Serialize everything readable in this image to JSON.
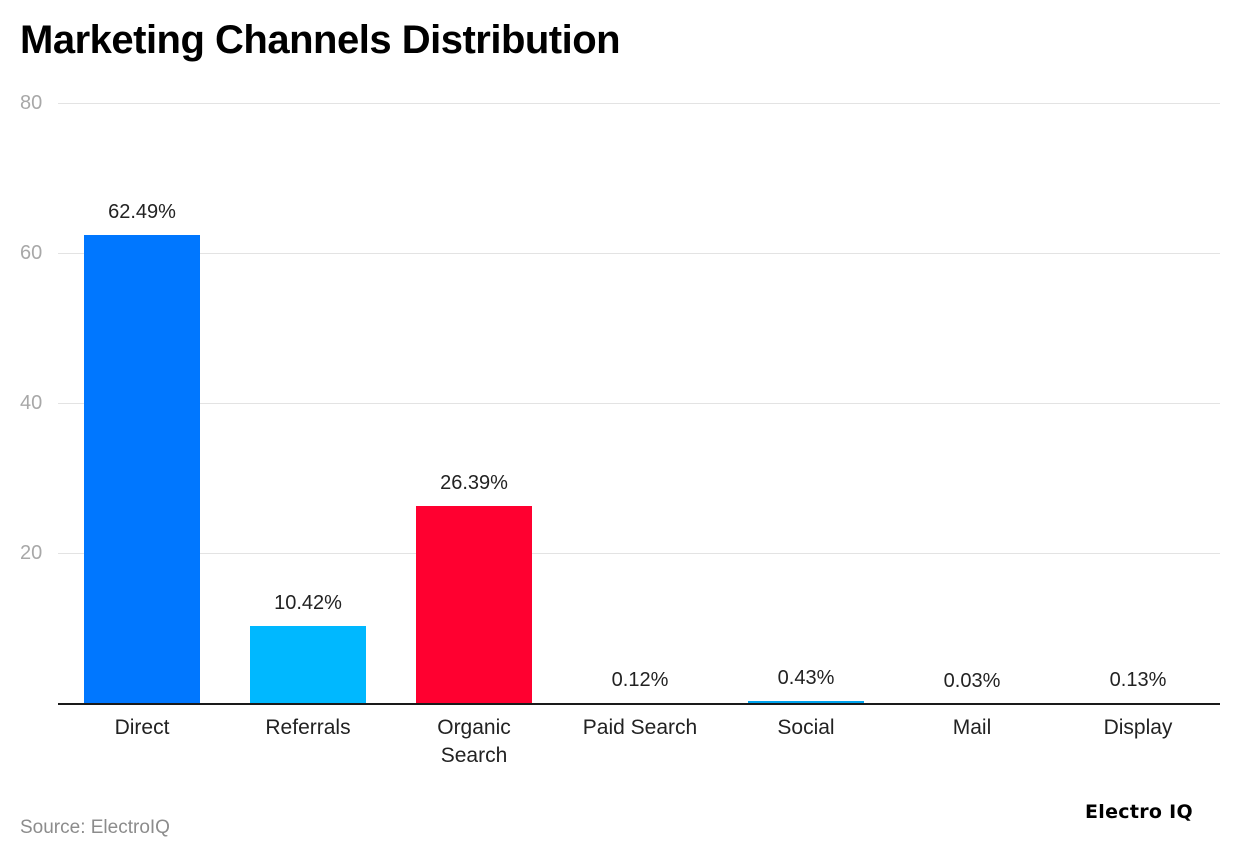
{
  "header": {
    "title": "Marketing Channels Distribution"
  },
  "footer": {
    "source": "Source: ElectroIQ",
    "brand": "Electro IQ"
  },
  "yaxis": {
    "ticks": [
      "80",
      "60",
      "40",
      "20"
    ]
  },
  "bars": [
    {
      "category": "Direct",
      "label": "62.49%",
      "value": 62.49,
      "color": "#0077ff"
    },
    {
      "category": "Referrals",
      "label": "10.42%",
      "value": 10.42,
      "color": "#00b8ff"
    },
    {
      "category": "Organic Search",
      "label": "26.39%",
      "value": 26.39,
      "color": "#ff0030"
    },
    {
      "category": "Paid Search",
      "label": "0.12%",
      "value": 0.12,
      "color": "#0077ff"
    },
    {
      "category": "Social",
      "label": "0.43%",
      "value": 0.43,
      "color": "#00a3ee"
    },
    {
      "category": "Mail",
      "label": "0.03%",
      "value": 0.03,
      "color": "#0077ff"
    },
    {
      "category": "Display",
      "label": "0.13%",
      "value": 0.13,
      "color": "#0077ff"
    }
  ],
  "chart_data": {
    "type": "bar",
    "title": "Marketing Channels Distribution",
    "categories": [
      "Direct",
      "Referrals",
      "Organic Search",
      "Paid Search",
      "Social",
      "Mail",
      "Display"
    ],
    "values": [
      62.49,
      10.42,
      26.39,
      0.12,
      0.43,
      0.03,
      0.13
    ],
    "data_labels": [
      "62.49%",
      "10.42%",
      "26.39%",
      "0.12%",
      "0.43%",
      "0.03%",
      "0.13%"
    ],
    "colors": [
      "#0077ff",
      "#00b8ff",
      "#ff0030",
      "#0077ff",
      "#00a3ee",
      "#0077ff",
      "#0077ff"
    ],
    "xlabel": "",
    "ylabel": "",
    "ylim": [
      0,
      80
    ],
    "yticks": [
      20,
      40,
      60,
      80
    ],
    "grid": true,
    "legend": "none",
    "source": "Source: ElectroIQ"
  }
}
